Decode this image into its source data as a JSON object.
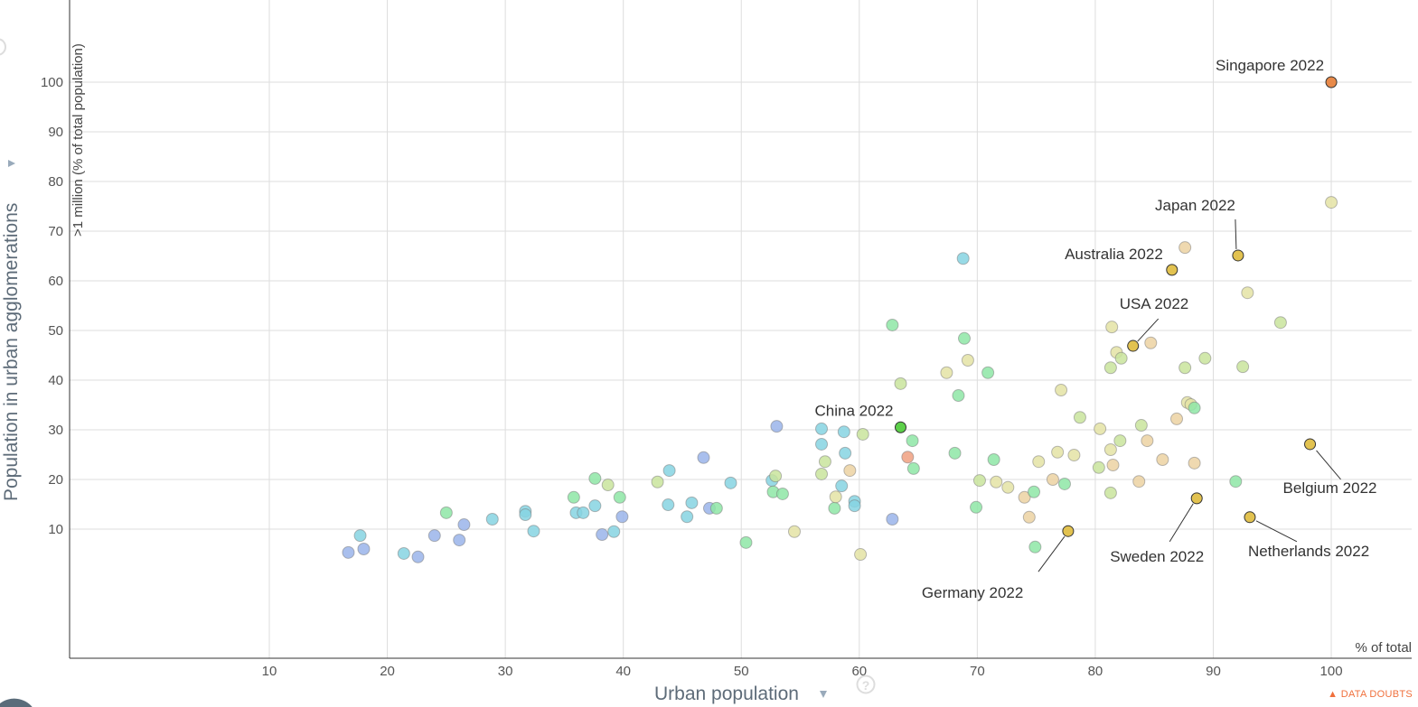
{
  "chart_data": {
    "type": "scatter",
    "xlabel": "Urban population",
    "xunit": "% of total",
    "ylabel": "Population in urban agglomerations",
    "ylabel_sub": ">1 million (% of total population)",
    "xlim": [
      -7,
      107
    ],
    "ylim": [
      -16,
      116
    ],
    "xticks": [
      10,
      20,
      30,
      40,
      50,
      60,
      70,
      80,
      90,
      100
    ],
    "yticks": [
      10,
      20,
      30,
      40,
      50,
      60,
      70,
      80,
      90,
      100
    ],
    "grid": true,
    "colors": {
      "blue": "#9ab4ea",
      "cyan": "#86d4e2",
      "green": "#8ee6a6",
      "yellowgreen": "#c9e49c",
      "yellow": "#e4e3a4",
      "tan": "#ecd2a2",
      "salmon": "#f0a080",
      "gold": "#e2c250",
      "orange": "#e88a4a",
      "china": "#5dd04a"
    },
    "highlighted": [
      {
        "name": "Singapore 2022",
        "x": 100,
        "y": 100,
        "color": "orange"
      },
      {
        "name": "Japan 2022",
        "x": 92.1,
        "y": 65.1,
        "color": "gold"
      },
      {
        "name": "Australia 2022",
        "x": 86.5,
        "y": 62.2,
        "color": "gold"
      },
      {
        "name": "USA 2022",
        "x": 83.2,
        "y": 46.9,
        "color": "gold"
      },
      {
        "name": "China 2022",
        "x": 63.5,
        "y": 30.5,
        "color": "china"
      },
      {
        "name": "Belgium 2022",
        "x": 98.2,
        "y": 27.1,
        "color": "gold"
      },
      {
        "name": "Sweden 2022",
        "x": 88.6,
        "y": 16.2,
        "color": "gold"
      },
      {
        "name": "Netherlands 2022",
        "x": 93.1,
        "y": 12.4,
        "color": "gold"
      },
      {
        "name": "Germany 2022",
        "x": 77.7,
        "y": 9.6,
        "color": "gold"
      }
    ],
    "points": [
      [
        16.7,
        5.3,
        "blue"
      ],
      [
        17.7,
        8.7,
        "cyan"
      ],
      [
        18.0,
        6.0,
        "blue"
      ],
      [
        21.4,
        5.1,
        "cyan"
      ],
      [
        22.6,
        4.4,
        "blue"
      ],
      [
        24.0,
        8.7,
        "blue"
      ],
      [
        25.0,
        13.3,
        "green"
      ],
      [
        26.1,
        7.8,
        "blue"
      ],
      [
        26.5,
        10.9,
        "blue"
      ],
      [
        28.9,
        12.0,
        "cyan"
      ],
      [
        31.7,
        13.6,
        "cyan"
      ],
      [
        31.7,
        12.9,
        "cyan"
      ],
      [
        32.4,
        9.6,
        "cyan"
      ],
      [
        35.8,
        16.4,
        "green"
      ],
      [
        36.0,
        13.3,
        "cyan"
      ],
      [
        36.6,
        13.3,
        "cyan"
      ],
      [
        37.6,
        14.7,
        "cyan"
      ],
      [
        37.6,
        20.2,
        "green"
      ],
      [
        38.2,
        8.9,
        "blue"
      ],
      [
        38.7,
        18.9,
        "yellowgreen"
      ],
      [
        39.2,
        9.5,
        "cyan"
      ],
      [
        39.7,
        16.4,
        "green"
      ],
      [
        39.9,
        12.5,
        "blue"
      ],
      [
        42.9,
        19.5,
        "yellowgreen"
      ],
      [
        43.8,
        14.9,
        "cyan"
      ],
      [
        43.9,
        21.8,
        "cyan"
      ],
      [
        45.4,
        12.5,
        "cyan"
      ],
      [
        45.8,
        15.3,
        "cyan"
      ],
      [
        46.8,
        24.4,
        "blue"
      ],
      [
        47.3,
        14.2,
        "blue"
      ],
      [
        47.9,
        14.2,
        "green"
      ],
      [
        49.1,
        19.3,
        "cyan"
      ],
      [
        50.4,
        7.3,
        "green"
      ],
      [
        52.6,
        19.8,
        "cyan"
      ],
      [
        52.7,
        17.5,
        "green"
      ],
      [
        52.9,
        20.7,
        "yellowgreen"
      ],
      [
        53.0,
        30.7,
        "blue"
      ],
      [
        53.5,
        17.1,
        "green"
      ],
      [
        54.5,
        9.5,
        "yellow"
      ],
      [
        56.8,
        21.1,
        "yellowgreen"
      ],
      [
        56.8,
        27.1,
        "cyan"
      ],
      [
        56.8,
        30.2,
        "cyan"
      ],
      [
        57.1,
        23.6,
        "yellowgreen"
      ],
      [
        57.9,
        14.2,
        "green"
      ],
      [
        58.0,
        16.5,
        "yellow"
      ],
      [
        58.5,
        18.7,
        "cyan"
      ],
      [
        58.7,
        29.6,
        "cyan"
      ],
      [
        58.8,
        25.3,
        "cyan"
      ],
      [
        59.2,
        21.8,
        "tan"
      ],
      [
        59.6,
        15.6,
        "cyan"
      ],
      [
        59.6,
        14.7,
        "cyan"
      ],
      [
        60.1,
        4.9,
        "yellow"
      ],
      [
        60.3,
        29.1,
        "yellowgreen"
      ],
      [
        62.8,
        51.1,
        "green"
      ],
      [
        62.8,
        12.0,
        "blue"
      ],
      [
        63.5,
        39.3,
        "yellowgreen"
      ],
      [
        64.1,
        24.5,
        "salmon"
      ],
      [
        64.5,
        27.8,
        "green"
      ],
      [
        64.6,
        22.2,
        "green"
      ],
      [
        67.4,
        41.5,
        "yellow"
      ],
      [
        68.1,
        25.3,
        "green"
      ],
      [
        68.4,
        36.9,
        "green"
      ],
      [
        68.8,
        64.5,
        "cyan"
      ],
      [
        68.9,
        48.4,
        "green"
      ],
      [
        69.2,
        44.0,
        "yellow"
      ],
      [
        69.9,
        14.4,
        "green"
      ],
      [
        70.2,
        19.8,
        "yellowgreen"
      ],
      [
        70.9,
        41.5,
        "green"
      ],
      [
        71.4,
        24.0,
        "green"
      ],
      [
        71.6,
        19.5,
        "yellow"
      ],
      [
        72.6,
        18.4,
        "yellow"
      ],
      [
        74.0,
        16.4,
        "tan"
      ],
      [
        74.4,
        12.4,
        "tan"
      ],
      [
        74.8,
        17.5,
        "green"
      ],
      [
        74.9,
        6.4,
        "green"
      ],
      [
        75.2,
        23.6,
        "yellow"
      ],
      [
        76.4,
        20.0,
        "tan"
      ],
      [
        76.8,
        25.5,
        "yellow"
      ],
      [
        77.1,
        38.0,
        "yellow"
      ],
      [
        77.4,
        19.1,
        "green"
      ],
      [
        78.2,
        24.9,
        "yellow"
      ],
      [
        78.7,
        32.5,
        "yellowgreen"
      ],
      [
        80.3,
        22.4,
        "yellowgreen"
      ],
      [
        80.4,
        30.2,
        "yellow"
      ],
      [
        81.3,
        26.0,
        "yellow"
      ],
      [
        81.3,
        17.3,
        "yellowgreen"
      ],
      [
        81.3,
        42.5,
        "yellowgreen"
      ],
      [
        81.4,
        50.7,
        "yellow"
      ],
      [
        81.5,
        22.9,
        "tan"
      ],
      [
        81.8,
        45.6,
        "yellow"
      ],
      [
        82.1,
        27.8,
        "yellowgreen"
      ],
      [
        82.2,
        44.4,
        "yellowgreen"
      ],
      [
        83.7,
        19.6,
        "tan"
      ],
      [
        83.9,
        30.9,
        "yellowgreen"
      ],
      [
        84.4,
        27.8,
        "tan"
      ],
      [
        84.7,
        47.5,
        "tan"
      ],
      [
        85.7,
        24.0,
        "tan"
      ],
      [
        86.9,
        32.2,
        "tan"
      ],
      [
        87.6,
        66.7,
        "tan"
      ],
      [
        87.6,
        42.5,
        "yellowgreen"
      ],
      [
        87.8,
        35.5,
        "yellow"
      ],
      [
        88.1,
        35.1,
        "yellow"
      ],
      [
        88.4,
        34.4,
        "green"
      ],
      [
        88.4,
        23.3,
        "tan"
      ],
      [
        89.3,
        44.4,
        "yellowgreen"
      ],
      [
        91.9,
        19.6,
        "green"
      ],
      [
        92.5,
        42.7,
        "yellowgreen"
      ],
      [
        92.9,
        57.6,
        "yellow"
      ],
      [
        95.7,
        51.6,
        "yellowgreen"
      ],
      [
        100,
        75.8,
        "yellow"
      ]
    ]
  },
  "footer": {
    "data_doubts": "DATA DOUBTS"
  }
}
